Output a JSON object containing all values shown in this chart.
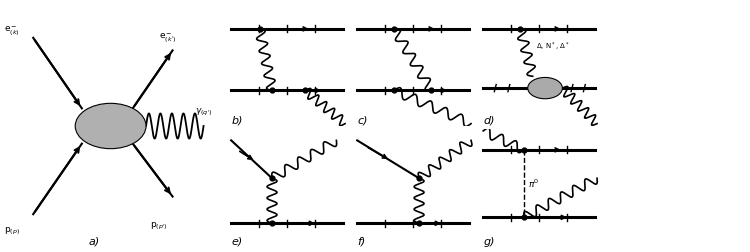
{
  "bg_color": "#ffffff",
  "line_color": "#000000",
  "fig_width": 7.5,
  "fig_height": 2.52,
  "dpi": 100,
  "labels": {
    "a": "a)",
    "b": "b)",
    "c": "c)",
    "d": "d)",
    "e": "e)",
    "f": "f)",
    "g": "g)"
  },
  "particle_labels": {
    "ek": "e$^-_{(k)}$",
    "ekp": "e$^-_{(k')}$",
    "gamma": "$\\gamma_{(q')}$",
    "pp": "p$_{(p)}$",
    "ppp": "p$_{(p')}$",
    "blob_label": "$\\Delta$, N$^*$, $\\Delta^*$",
    "pi0": "$\\pi^0$"
  }
}
